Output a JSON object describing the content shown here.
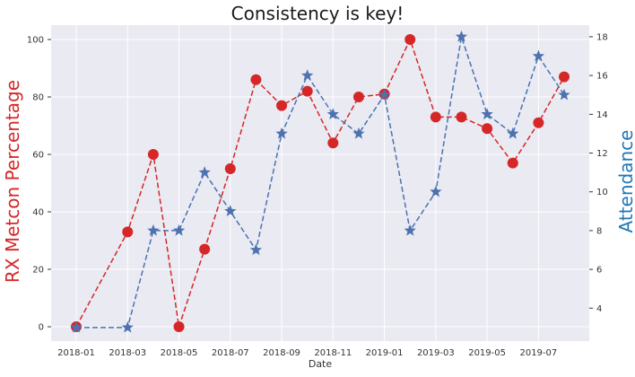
{
  "chart_data": {
    "type": "line",
    "title": "Consistency is key!",
    "xlabel": "Date",
    "ylabel_left": "RX Metcon Percentage",
    "ylabel_right": "Attendance",
    "x": [
      "2018-01",
      "2018-03",
      "2018-04",
      "2018-05",
      "2018-06",
      "2018-07",
      "2018-08",
      "2018-09",
      "2018-10",
      "2018-11",
      "2018-12",
      "2019-01",
      "2019-02",
      "2019-03",
      "2019-04",
      "2019-05",
      "2019-06",
      "2019-07",
      "2019-08"
    ],
    "x_ticks": [
      "2018-01",
      "2018-03",
      "2018-05",
      "2018-07",
      "2018-09",
      "2018-11",
      "2019-01",
      "2019-03",
      "2019-05",
      "2019-07"
    ],
    "ylim_left": [
      -5,
      105
    ],
    "yticks_left": [
      0,
      20,
      40,
      60,
      80,
      100
    ],
    "ylim_right": [
      2.3,
      18.6
    ],
    "yticks_right": [
      4,
      6,
      8,
      10,
      12,
      14,
      16,
      18
    ],
    "grid": true,
    "series": [
      {
        "axis": "left",
        "color": "#d62728",
        "marker": "circle",
        "linestyle": "dashed",
        "values": [
          0,
          33,
          60,
          0,
          27,
          55,
          86,
          77,
          82,
          64,
          80,
          81,
          100,
          73,
          73,
          69,
          57,
          71,
          87
        ]
      },
      {
        "axis": "right",
        "color": "#4c72b0",
        "marker": "star",
        "linestyle": "dashed",
        "values": [
          3,
          3,
          8,
          8,
          11,
          9,
          7,
          13,
          16,
          14,
          13,
          15,
          8,
          10,
          18,
          14,
          13,
          17,
          15
        ]
      }
    ]
  }
}
